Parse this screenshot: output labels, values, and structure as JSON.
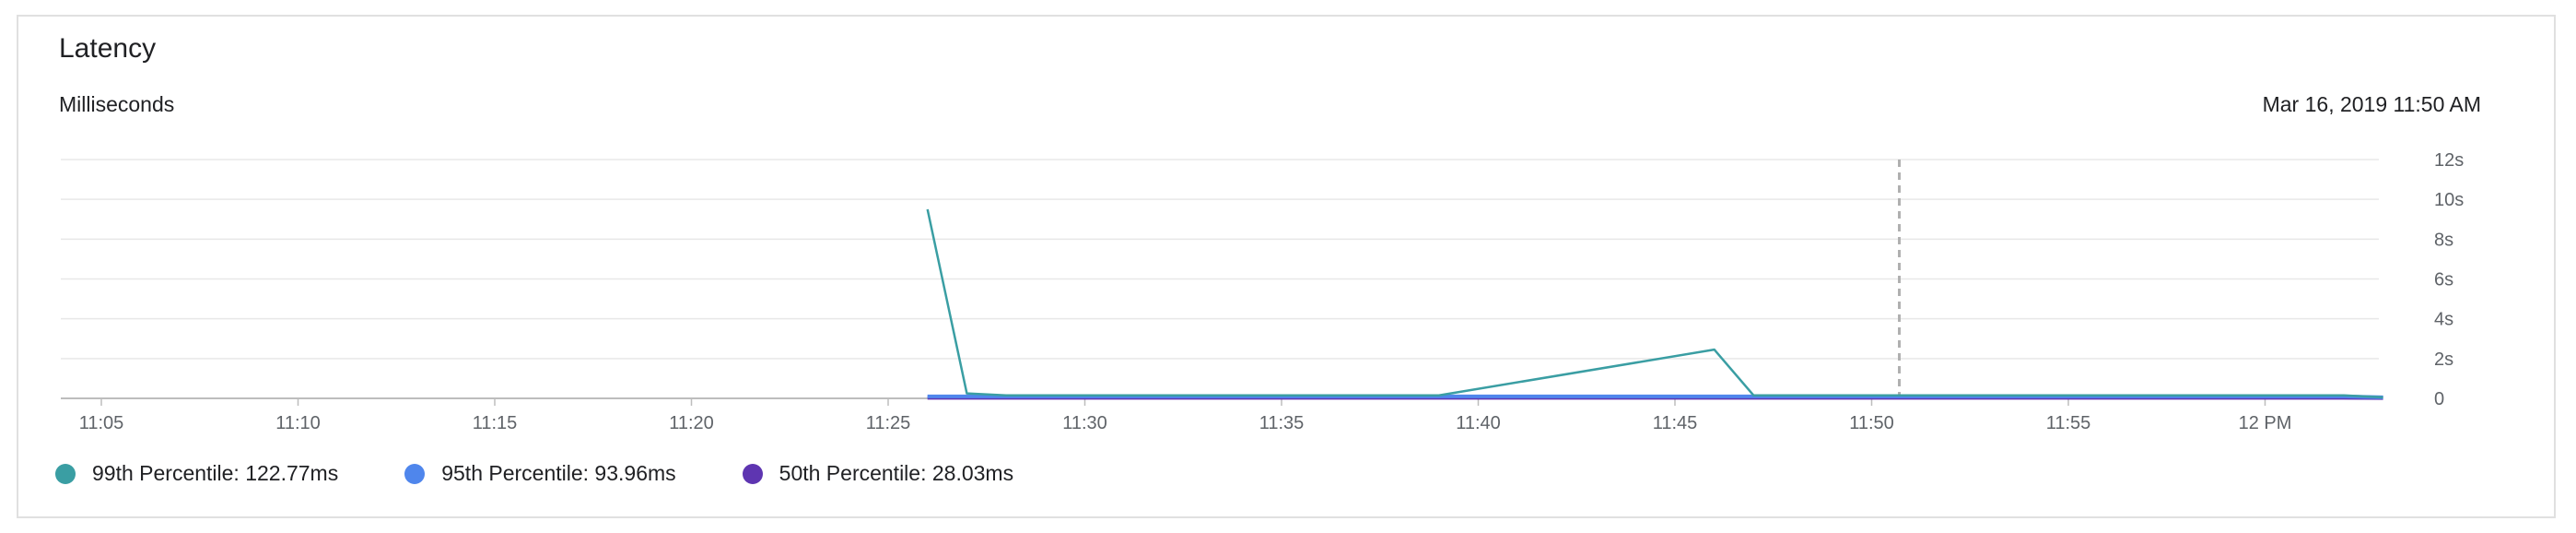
{
  "card": {
    "title": "Latency",
    "subtitle": "Milliseconds",
    "timestamp": "Mar 16, 2019 11:50 AM"
  },
  "chart_data": {
    "type": "line",
    "title": "Latency",
    "ylabel": "Milliseconds",
    "x_ticks": [
      "11:05",
      "11:10",
      "11:15",
      "11:20",
      "11:25",
      "11:30",
      "11:35",
      "11:40",
      "11:45",
      "11:50",
      "11:55",
      "12 PM"
    ],
    "y_ticks": [
      "0",
      "2s",
      "4s",
      "6s",
      "8s",
      "10s",
      "12s"
    ],
    "ylim": [
      0,
      12
    ],
    "y_unit": "s",
    "cursor_time": "11:50",
    "series": [
      {
        "name": "99th Percentile",
        "color": "#3a9ea3",
        "x": [
          "11:26",
          "11:27",
          "11:28",
          "11:30",
          "11:35",
          "11:39",
          "11:46",
          "11:47",
          "11:50",
          "11:55",
          "12:00",
          "12:02",
          "12:03"
        ],
        "y": [
          9.5,
          0.25,
          0.15,
          0.15,
          0.15,
          0.15,
          2.45,
          0.15,
          0.15,
          0.15,
          0.15,
          0.15,
          0.05
        ]
      },
      {
        "name": "95th Percentile",
        "color": "#4f86ec",
        "x": [
          "11:26",
          "11:30",
          "11:35",
          "11:40",
          "11:45",
          "11:50",
          "11:55",
          "12:00",
          "12:02",
          "12:03"
        ],
        "y": [
          0.1,
          0.1,
          0.1,
          0.1,
          0.1,
          0.1,
          0.1,
          0.1,
          0.1,
          0.05
        ]
      },
      {
        "name": "50th Percentile",
        "color": "#5e35b1",
        "x": [
          "11:26",
          "11:30",
          "11:35",
          "11:40",
          "11:45",
          "11:50",
          "11:55",
          "12:00",
          "12:02",
          "12:03"
        ],
        "y": [
          0.03,
          0.03,
          0.03,
          0.03,
          0.03,
          0.03,
          0.03,
          0.03,
          0.03,
          0.02
        ]
      }
    ]
  },
  "legend": [
    {
      "label": "99th Percentile: 122.77ms",
      "color": "#3a9ea3"
    },
    {
      "label": "95th Percentile: 93.96ms",
      "color": "#4f86ec"
    },
    {
      "label": "50th Percentile: 28.03ms",
      "color": "#5e35b1"
    }
  ]
}
